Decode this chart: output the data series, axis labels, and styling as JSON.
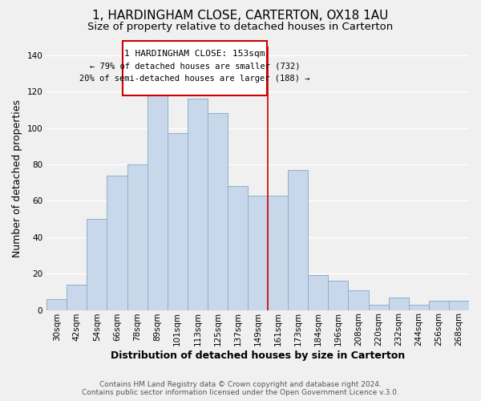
{
  "title": "1, HARDINGHAM CLOSE, CARTERTON, OX18 1AU",
  "subtitle": "Size of property relative to detached houses in Carterton",
  "xlabel": "Distribution of detached houses by size in Carterton",
  "ylabel": "Number of detached properties",
  "categories": [
    "30sqm",
    "42sqm",
    "54sqm",
    "66sqm",
    "78sqm",
    "89sqm",
    "101sqm",
    "113sqm",
    "125sqm",
    "137sqm",
    "149sqm",
    "161sqm",
    "173sqm",
    "184sqm",
    "196sqm",
    "208sqm",
    "220sqm",
    "232sqm",
    "244sqm",
    "256sqm",
    "268sqm"
  ],
  "values": [
    6,
    14,
    50,
    74,
    80,
    120,
    97,
    116,
    108,
    68,
    63,
    63,
    77,
    19,
    16,
    11,
    3,
    7,
    3,
    5,
    5
  ],
  "bar_color": "#c8d8ea",
  "bar_edge_color": "#8ab0cc",
  "vline_color": "#cc0000",
  "annotation_title": "1 HARDINGHAM CLOSE: 153sqm",
  "annotation_line1": "← 79% of detached houses are smaller (732)",
  "annotation_line2": "20% of semi-detached houses are larger (188) →",
  "annotation_box_color": "#ffffff",
  "annotation_box_edge_color": "#cc0000",
  "footer_line1": "Contains HM Land Registry data © Crown copyright and database right 2024.",
  "footer_line2": "Contains public sector information licensed under the Open Government Licence v.3.0.",
  "ylim": [
    0,
    145
  ],
  "background_color": "#f0f0f0",
  "grid_color": "#ffffff",
  "title_fontsize": 11,
  "subtitle_fontsize": 9.5,
  "axis_label_fontsize": 9,
  "tick_fontsize": 7.5,
  "footer_fontsize": 6.5
}
